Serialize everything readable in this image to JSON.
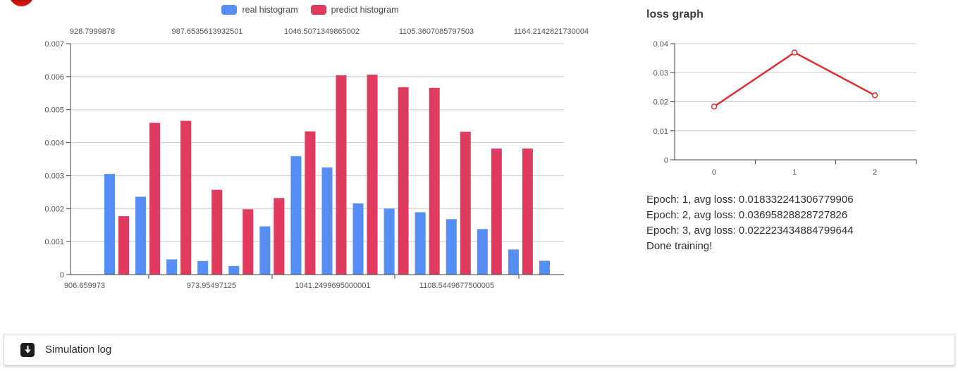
{
  "brand": {
    "logo": "red-circle-logo-partial"
  },
  "loss_panel": {
    "title": "loss graph",
    "log_lines": [
      "Epoch: 1, avg loss: 0.018332241306779906",
      "Epoch: 2, avg loss: 0.03695828828727826",
      "Epoch: 3, avg loss: 0.022223434884799644",
      "Done training!"
    ]
  },
  "simulation_log": {
    "icon": "download-arrow-icon",
    "label": "Simulation log"
  },
  "colors": {
    "real_histogram": "#578ef5",
    "predict_histogram": "#e03a5e",
    "loss_line": "#e12f2f",
    "grid": "#cccccc",
    "axis": "#424242"
  },
  "chart_data": [
    {
      "type": "bar",
      "title": "",
      "legend_position": "top",
      "grid": true,
      "ylim": [
        0,
        0.007
      ],
      "y_ticks": [
        "0",
        "0.001",
        "0.002",
        "0.003",
        "0.004",
        "0.005",
        "0.006",
        "0.007"
      ],
      "x_axis_top": {
        "labels": [
          "928.7999878",
          "987.6535613932501",
          "1046.5071349865002",
          "1105.3607085797503",
          "1164.2142821730004"
        ]
      },
      "x_axis_bottom": {
        "labels": [
          "906.659973",
          "973.95497125",
          "1041.2499695000001",
          "1108.5449677500005"
        ]
      },
      "series": [
        {
          "name": "real histogram",
          "color": "#578ef5",
          "values": [
            0.00305,
            0.00236,
            0.00046,
            0.00041,
            0.00026,
            0.00146,
            0.00359,
            0.00325,
            0.00216,
            0.002,
            0.00189,
            0.00168,
            0.00138,
            0.00076,
            0.00042
          ]
        },
        {
          "name": "predict histogram",
          "color": "#e03a5e",
          "values": [
            0.00177,
            0.0046,
            0.00466,
            0.00257,
            0.00198,
            0.00232,
            0.00434,
            0.00604,
            0.00606,
            0.00568,
            0.00566,
            0.00433,
            0.00382,
            0.00382,
            0
          ]
        }
      ]
    },
    {
      "type": "line",
      "title": "loss graph",
      "x": [
        0,
        1,
        2
      ],
      "values": [
        0.018332241306779906,
        0.03695828828727826,
        0.022223434884799644
      ],
      "ylim": [
        0,
        0.04
      ],
      "y_ticks": [
        0,
        0.01,
        0.02,
        0.03,
        0.04
      ],
      "grid": true,
      "marker": "open-circle",
      "color": "#e12f2f",
      "legend_position": "none"
    }
  ]
}
